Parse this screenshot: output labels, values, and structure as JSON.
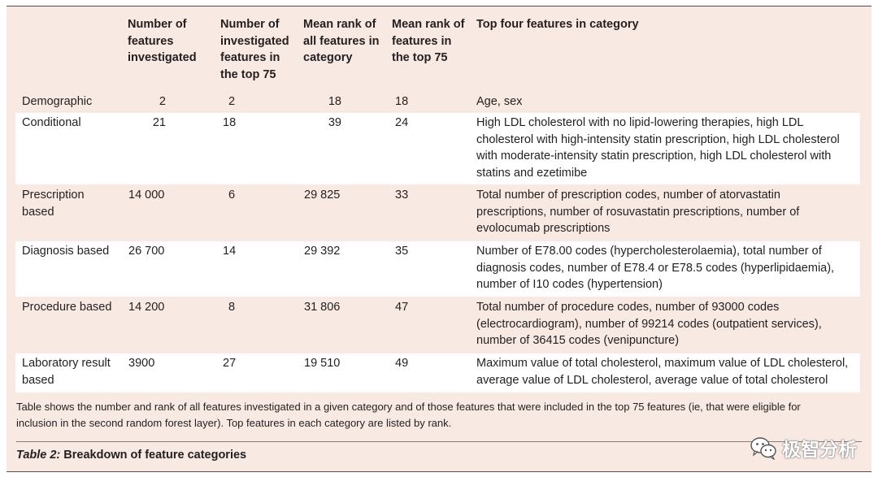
{
  "headers": {
    "num_investigated": [
      "Number of",
      "features",
      "investigated"
    ],
    "num_top75": [
      "Number of",
      "investigated",
      "features in",
      "the top 75"
    ],
    "mean_rank_all": [
      "Mean rank of",
      "all features in",
      "category"
    ],
    "mean_rank_top75": [
      "Mean rank of",
      "features in",
      "the top 75"
    ],
    "top_four": [
      "Top four features in category"
    ]
  },
  "rows": [
    {
      "category": [
        "Demographic"
      ],
      "num_investigated": "2",
      "num_top75": "2",
      "mean_rank_all": "18",
      "mean_rank_top75": "18",
      "features": [
        "Age, sex"
      ]
    },
    {
      "category": [
        "Conditional"
      ],
      "num_investigated": "21",
      "num_top75": "18",
      "mean_rank_all": "39",
      "mean_rank_top75": "24",
      "features": [
        "High LDL cholesterol with no lipid-lowering therapies, high LDL",
        "cholesterol with high-intensity statin prescription, high LDL cholesterol",
        "with moderate-intensity statin prescription, high LDL cholesterol with",
        "statins and ezetimibe"
      ]
    },
    {
      "category": [
        "Prescription",
        "based"
      ],
      "num_investigated": "14 000",
      "num_top75": "6",
      "mean_rank_all": "29 825",
      "mean_rank_top75": "33",
      "features": [
        "Total number of prescription codes, number of atorvastatin",
        "prescriptions, number of rosuvastatin prescriptions, number of",
        "evolocumab prescriptions"
      ]
    },
    {
      "category": [
        "Diagnosis based"
      ],
      "num_investigated": "26 700",
      "num_top75": "14",
      "mean_rank_all": "29 392",
      "mean_rank_top75": "35",
      "features": [
        "Number of E78.00 codes (hypercholesterolaemia), total number of",
        "diagnosis codes, number of E78.4 or E78.5 codes (hyperlipidaemia),",
        "number of I10 codes (hypertension)"
      ]
    },
    {
      "category": [
        "Procedure based"
      ],
      "num_investigated": "14 200",
      "num_top75": "8",
      "mean_rank_all": "31 806",
      "mean_rank_top75": "47",
      "features": [
        "Total number of procedure codes, number of 93000 codes",
        "(electrocardiogram), number of 99214 codes (outpatient services),",
        "number of 36415 codes (venipuncture)"
      ]
    },
    {
      "category": [
        "Laboratory result",
        "based"
      ],
      "num_investigated": "3900",
      "num_top75": "27",
      "mean_rank_all": "19 510",
      "mean_rank_top75": "49",
      "features": [
        "Maximum value of total cholesterol, maximum value of LDL cholesterol,",
        "average value of LDL cholesterol, average value of total cholesterol"
      ]
    }
  ],
  "note": [
    "Table shows the number and rank of all features investigated in a given category and of those features that were included in the top 75 features (ie, that were eligible for",
    "inclusion in the second random forest layer). Top features in each category are listed by rank."
  ],
  "caption": {
    "label": "Table 2:",
    "title": " Breakdown of feature categories"
  },
  "watermark": {
    "icon": "wechat-icon",
    "text": "极智分析"
  }
}
